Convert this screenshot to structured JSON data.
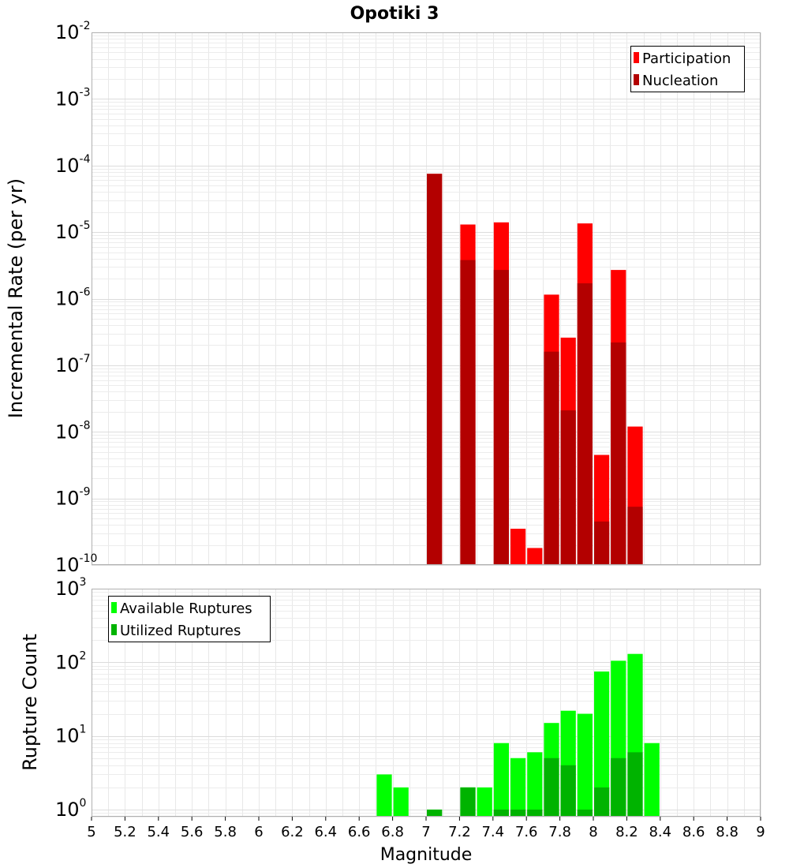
{
  "chart_data": {
    "title": "Opotiki 3",
    "xlabel": "Magnitude",
    "type": "bar",
    "xlim": [
      5,
      9
    ],
    "x_ticks": [
      "5",
      "5.2",
      "5.4",
      "5.6",
      "5.8",
      "6",
      "6.2",
      "6.4",
      "6.6",
      "6.8",
      "7",
      "7.2",
      "7.4",
      "7.6",
      "7.8",
      "8",
      "8.2",
      "8.4",
      "8.6",
      "8.8",
      "9"
    ],
    "bin_width": 0.1,
    "grid": true,
    "panels": [
      {
        "name": "rate",
        "ylabel": "Incremental Rate (per yr)",
        "yscale": "log",
        "ylim": [
          1e-10,
          0.01
        ],
        "y_ticks": [
          {
            "base": "10",
            "exp": "-10"
          },
          {
            "base": "10",
            "exp": "-9"
          },
          {
            "base": "10",
            "exp": "-8"
          },
          {
            "base": "10",
            "exp": "-7"
          },
          {
            "base": "10",
            "exp": "-6"
          },
          {
            "base": "10",
            "exp": "-5"
          },
          {
            "base": "10",
            "exp": "-4"
          },
          {
            "base": "10",
            "exp": "-3"
          },
          {
            "base": "10",
            "exp": "-2"
          }
        ],
        "legend_position": "top-right",
        "series": [
          {
            "name": "Participation",
            "color": "#ff0000",
            "x": [
              7.05,
              7.25,
              7.45,
              7.55,
              7.65,
              7.75,
              7.85,
              7.95,
              8.05,
              8.15,
              8.25
            ],
            "values": [
              7.5e-05,
              1.3e-05,
              1.4e-05,
              3.5e-10,
              1.8e-10,
              1.15e-06,
              2.6e-07,
              1.35e-05,
              4.5e-09,
              2.7e-06,
              1.2e-08
            ]
          },
          {
            "name": "Nucleation",
            "color": "#b30000",
            "x": [
              7.05,
              7.25,
              7.45,
              7.75,
              7.85,
              7.95,
              8.05,
              8.15,
              8.25
            ],
            "values": [
              7.5e-05,
              3.8e-06,
              2.7e-06,
              1.6e-07,
              2.1e-08,
              1.7e-06,
              4.5e-10,
              2.2e-07,
              7.5e-10
            ]
          }
        ]
      },
      {
        "name": "count",
        "ylabel": "Rupture Count",
        "yscale": "log",
        "ylim": [
          0.8,
          1000
        ],
        "y_ticks": [
          {
            "base": "10",
            "exp": "0"
          },
          {
            "base": "10",
            "exp": "1"
          },
          {
            "base": "10",
            "exp": "2"
          },
          {
            "base": "10",
            "exp": "3"
          }
        ],
        "legend_position": "top-left",
        "series": [
          {
            "name": "Available Ruptures",
            "color": "#00ff00",
            "x": [
              6.75,
              6.85,
              7.05,
              7.25,
              7.35,
              7.45,
              7.55,
              7.65,
              7.75,
              7.85,
              7.95,
              8.05,
              8.15,
              8.25,
              8.35
            ],
            "values": [
              3,
              2,
              1,
              2,
              2,
              8,
              5,
              6,
              15,
              22,
              20,
              75,
              105,
              130,
              8
            ]
          },
          {
            "name": "Utilized Ruptures",
            "color": "#00b300",
            "x": [
              7.05,
              7.25,
              7.45,
              7.55,
              7.65,
              7.75,
              7.85,
              7.95,
              8.05,
              8.15,
              8.25
            ],
            "values": [
              1,
              2,
              1,
              1,
              1,
              5,
              4,
              1,
              2,
              5,
              6
            ]
          }
        ]
      }
    ]
  }
}
